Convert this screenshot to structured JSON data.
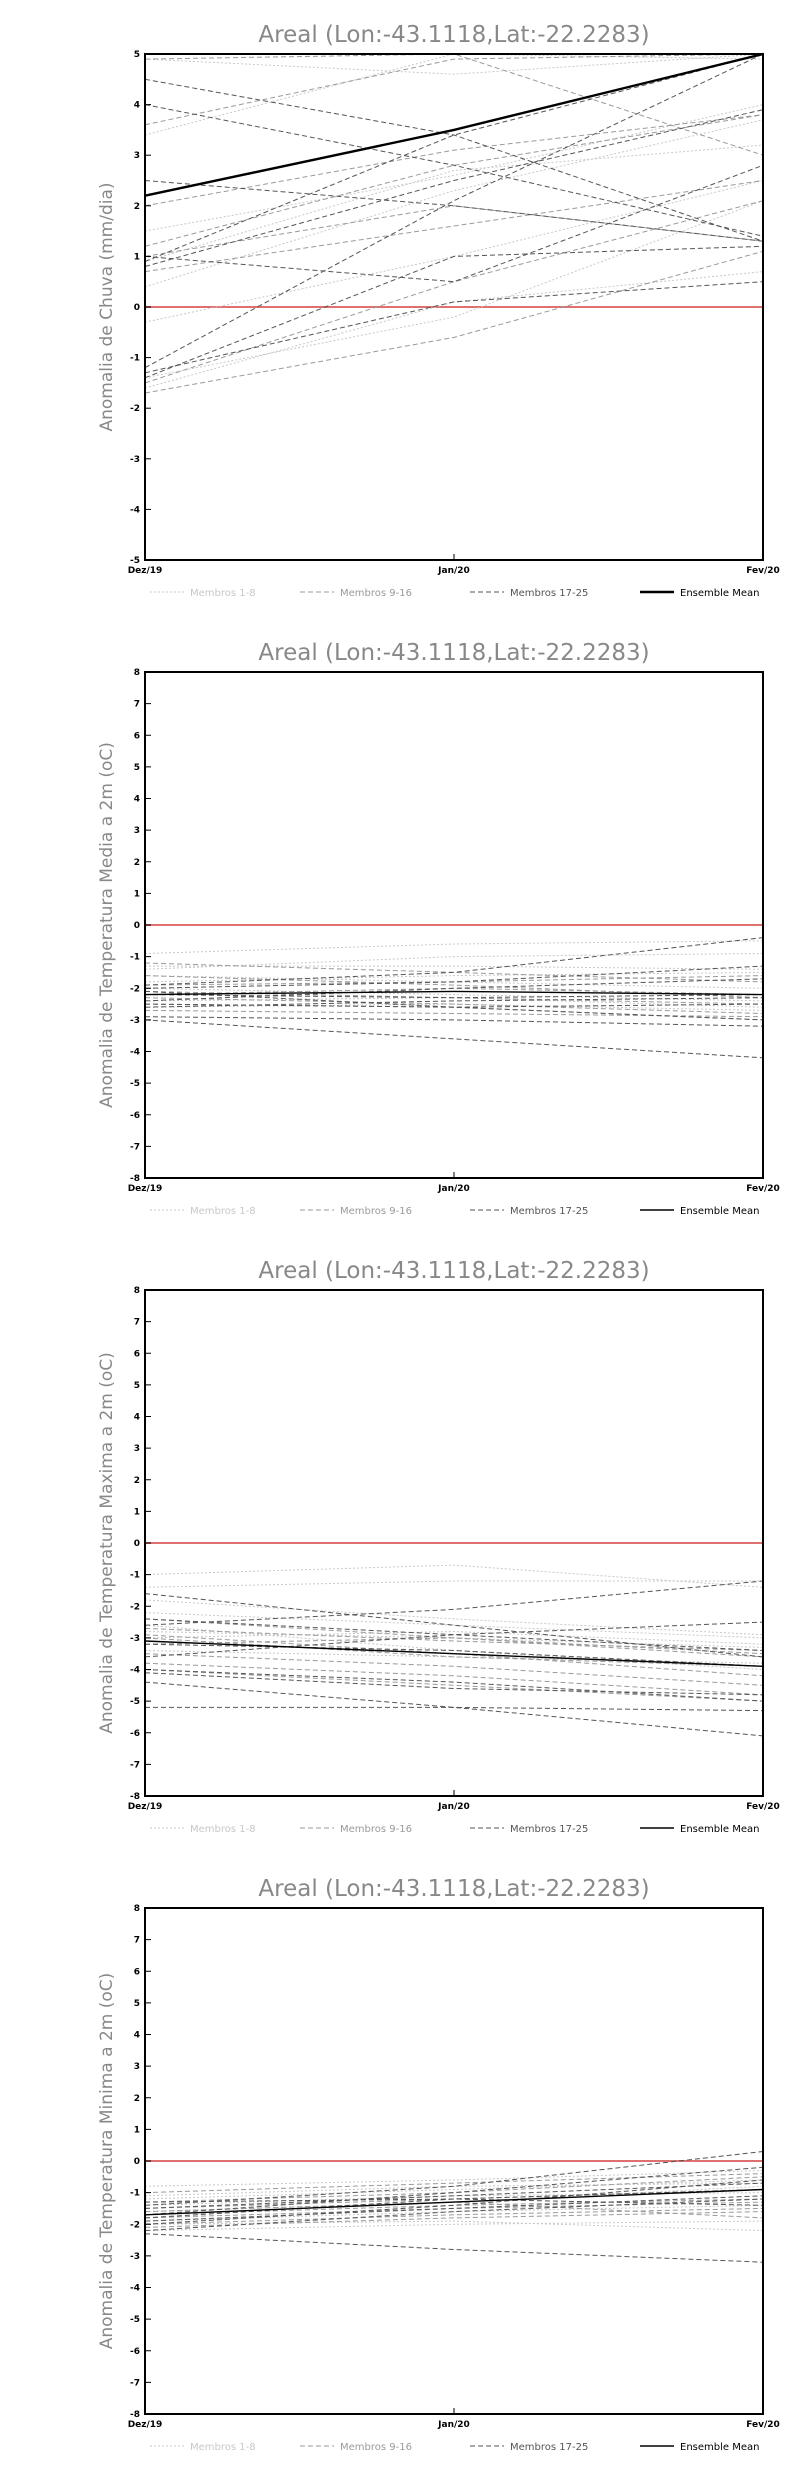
{
  "chart_data": [
    {
      "type": "line",
      "title": "Areal (Lon:-43.1118,Lat:-22.2283)",
      "xlabel": "",
      "ylabel": "Anomalia de Chuva (mm/dia)",
      "categories": [
        "Dez/19",
        "Jan/20",
        "Fev/20"
      ],
      "ylim": [
        -5,
        5
      ],
      "yticks": [
        -5,
        -4,
        -3,
        -2,
        -1,
        0,
        1,
        2,
        3,
        4,
        5
      ],
      "grid": false,
      "zero_line_color": "#e07070",
      "legend": [
        {
          "name": "Membros 1-8",
          "color": "#c8c8c8",
          "style": "dotted"
        },
        {
          "name": "Membros 9-16",
          "color": "#9a9a9a",
          "style": "dashed"
        },
        {
          "name": "Membros 17-25",
          "color": "#555555",
          "style": "dashed"
        },
        {
          "name": "Ensemble Mean",
          "color": "#000000",
          "style": "solid"
        }
      ],
      "mean_width": 2.4,
      "series": [
        {
          "group": 0,
          "values": [
            3.4,
            5.0,
            4.9
          ]
        },
        {
          "group": 0,
          "values": [
            1.5,
            2.6,
            4.0
          ]
        },
        {
          "group": 0,
          "values": [
            0.4,
            2.3,
            3.7
          ]
        },
        {
          "group": 0,
          "values": [
            -0.3,
            1.0,
            2.5
          ]
        },
        {
          "group": 0,
          "values": [
            -1.6,
            0.1,
            0.7
          ]
        },
        {
          "group": 0,
          "values": [
            -1.4,
            -0.2,
            2.1
          ]
        },
        {
          "group": 0,
          "values": [
            4.9,
            4.6,
            5.0
          ]
        },
        {
          "group": 0,
          "values": [
            0.9,
            2.7,
            3.2
          ]
        },
        {
          "group": 1,
          "values": [
            4.9,
            5.0,
            3.0
          ]
        },
        {
          "group": 1,
          "values": [
            2.0,
            3.1,
            3.8
          ]
        },
        {
          "group": 1,
          "values": [
            0.7,
            1.6,
            2.5
          ]
        },
        {
          "group": 1,
          "values": [
            -1.5,
            0.5,
            2.1
          ]
        },
        {
          "group": 1,
          "values": [
            -1.7,
            -0.6,
            1.1
          ]
        },
        {
          "group": 1,
          "values": [
            1.2,
            2.8,
            3.8
          ]
        },
        {
          "group": 1,
          "values": [
            3.6,
            4.9,
            5.0
          ]
        },
        {
          "group": 1,
          "values": [
            1.0,
            2.0,
            1.3
          ]
        },
        {
          "group": 2,
          "values": [
            4.5,
            3.4,
            1.3
          ]
        },
        {
          "group": 2,
          "values": [
            4.0,
            2.8,
            1.4
          ]
        },
        {
          "group": 2,
          "values": [
            0.9,
            3.4,
            5.0
          ]
        },
        {
          "group": 2,
          "values": [
            -1.2,
            2.1,
            5.0
          ]
        },
        {
          "group": 2,
          "values": [
            -1.4,
            1.0,
            1.2
          ]
        },
        {
          "group": 2,
          "values": [
            -1.3,
            0.1,
            0.5
          ]
        },
        {
          "group": 2,
          "values": [
            0.8,
            2.5,
            3.9
          ]
        },
        {
          "group": 2,
          "values": [
            1.0,
            0.5,
            2.8
          ]
        },
        {
          "group": 2,
          "values": [
            2.5,
            2.0,
            1.3
          ]
        }
      ],
      "ensemble_mean": [
        2.2,
        3.5,
        5.0
      ]
    },
    {
      "type": "line",
      "title": "Areal (Lon:-43.1118,Lat:-22.2283)",
      "xlabel": "",
      "ylabel": "Anomalia de Temperatura Media a 2m (oC)",
      "categories": [
        "Dez/19",
        "Jan/20",
        "Fev/20"
      ],
      "ylim": [
        -8,
        8
      ],
      "yticks": [
        -8,
        -7,
        -6,
        -5,
        -4,
        -3,
        -2,
        -1,
        0,
        1,
        2,
        3,
        4,
        5,
        6,
        7,
        8
      ],
      "grid": false,
      "zero_line_color": "#e07070",
      "legend": [
        {
          "name": "Membros 1-8",
          "color": "#c8c8c8",
          "style": "dotted"
        },
        {
          "name": "Membros 9-16",
          "color": "#9a9a9a",
          "style": "dashed"
        },
        {
          "name": "Membros 17-25",
          "color": "#555555",
          "style": "dashed"
        },
        {
          "name": "Ensemble Mean",
          "color": "#000000",
          "style": "solid"
        }
      ],
      "mean_width": 1.4,
      "series": [
        {
          "group": 0,
          "values": [
            -0.9,
            -0.6,
            -0.5
          ]
        },
        {
          "group": 0,
          "values": [
            -1.3,
            -1.3,
            -1.4
          ]
        },
        {
          "group": 0,
          "values": [
            -1.6,
            -1.8,
            -2.0
          ]
        },
        {
          "group": 0,
          "values": [
            -2.4,
            -2.3,
            -2.6
          ]
        },
        {
          "group": 0,
          "values": [
            -1.4,
            -1.0,
            -0.9
          ]
        },
        {
          "group": 0,
          "values": [
            -2.0,
            -2.2,
            -2.4
          ]
        },
        {
          "group": 0,
          "values": [
            -1.8,
            -1.6,
            -1.5
          ]
        },
        {
          "group": 0,
          "values": [
            -2.6,
            -2.5,
            -2.7
          ]
        },
        {
          "group": 1,
          "values": [
            -1.2,
            -1.5,
            -1.8
          ]
        },
        {
          "group": 1,
          "values": [
            -1.6,
            -1.9,
            -2.3
          ]
        },
        {
          "group": 1,
          "values": [
            -2.1,
            -2.3,
            -2.5
          ]
        },
        {
          "group": 1,
          "values": [
            -2.3,
            -2.5,
            -2.8
          ]
        },
        {
          "group": 1,
          "values": [
            -1.9,
            -1.8,
            -1.6
          ]
        },
        {
          "group": 1,
          "values": [
            -2.5,
            -2.6,
            -3.0
          ]
        },
        {
          "group": 1,
          "values": [
            -2.7,
            -2.8,
            -2.9
          ]
        },
        {
          "group": 1,
          "values": [
            -2.2,
            -2.0,
            -2.2
          ]
        },
        {
          "group": 2,
          "values": [
            -2.0,
            -1.8,
            -1.3
          ]
        },
        {
          "group": 2,
          "values": [
            -2.4,
            -2.0,
            -1.7
          ]
        },
        {
          "group": 2,
          "values": [
            -2.2,
            -2.3,
            -2.2
          ]
        },
        {
          "group": 2,
          "values": [
            -2.6,
            -2.4,
            -2.3
          ]
        },
        {
          "group": 2,
          "values": [
            -2.9,
            -3.0,
            -3.2
          ]
        },
        {
          "group": 2,
          "values": [
            -2.1,
            -2.6,
            -3.0
          ]
        },
        {
          "group": 2,
          "values": [
            -3.0,
            -3.6,
            -4.2
          ]
        },
        {
          "group": 2,
          "values": [
            -1.9,
            -1.5,
            -0.4
          ]
        },
        {
          "group": 2,
          "values": [
            -2.5,
            -2.6,
            -2.5
          ]
        }
      ],
      "ensemble_mean": [
        -2.2,
        -2.1,
        -2.2
      ]
    },
    {
      "type": "line",
      "title": "Areal (Lon:-43.1118,Lat:-22.2283)",
      "xlabel": "",
      "ylabel": "Anomalia de Temperatura Maxima a 2m (oC)",
      "categories": [
        "Dez/19",
        "Jan/20",
        "Fev/20"
      ],
      "ylim": [
        -8,
        8
      ],
      "yticks": [
        -8,
        -7,
        -6,
        -5,
        -4,
        -3,
        -2,
        -1,
        0,
        1,
        2,
        3,
        4,
        5,
        6,
        7,
        8
      ],
      "grid": false,
      "zero_line_color": "#e07070",
      "legend": [
        {
          "name": "Membros 1-8",
          "color": "#c8c8c8",
          "style": "dotted"
        },
        {
          "name": "Membros 9-16",
          "color": "#9a9a9a",
          "style": "dashed"
        },
        {
          "name": "Membros 17-25",
          "color": "#555555",
          "style": "dashed"
        },
        {
          "name": "Ensemble Mean",
          "color": "#000000",
          "style": "solid"
        }
      ],
      "mean_width": 1.4,
      "series": [
        {
          "group": 0,
          "values": [
            -1.0,
            -0.7,
            -1.4
          ]
        },
        {
          "group": 0,
          "values": [
            -1.4,
            -1.2,
            -1.2
          ]
        },
        {
          "group": 0,
          "values": [
            -2.2,
            -2.6,
            -3.0
          ]
        },
        {
          "group": 0,
          "values": [
            -2.8,
            -3.0,
            -3.3
          ]
        },
        {
          "group": 0,
          "values": [
            -1.8,
            -2.4,
            -2.9
          ]
        },
        {
          "group": 0,
          "values": [
            -3.4,
            -3.6,
            -3.8
          ]
        },
        {
          "group": 0,
          "values": [
            -2.6,
            -3.4,
            -4.0
          ]
        },
        {
          "group": 0,
          "values": [
            -3.0,
            -2.8,
            -3.2
          ]
        },
        {
          "group": 1,
          "values": [
            -2.4,
            -3.0,
            -3.5
          ]
        },
        {
          "group": 1,
          "values": [
            -2.9,
            -3.5,
            -4.2
          ]
        },
        {
          "group": 1,
          "values": [
            -3.2,
            -3.0,
            -3.6
          ]
        },
        {
          "group": 1,
          "values": [
            -3.5,
            -3.9,
            -4.5
          ]
        },
        {
          "group": 1,
          "values": [
            -2.7,
            -3.1,
            -3.4
          ]
        },
        {
          "group": 1,
          "values": [
            -3.8,
            -4.2,
            -4.8
          ]
        },
        {
          "group": 1,
          "values": [
            -4.0,
            -4.5,
            -5.0
          ]
        },
        {
          "group": 1,
          "values": [
            -3.0,
            -3.6,
            -3.9
          ]
        },
        {
          "group": 2,
          "values": [
            -1.6,
            -2.6,
            -3.6
          ]
        },
        {
          "group": 2,
          "values": [
            -2.6,
            -2.1,
            -1.2
          ]
        },
        {
          "group": 2,
          "values": [
            -3.6,
            -2.9,
            -2.5
          ]
        },
        {
          "group": 2,
          "values": [
            -4.1,
            -4.6,
            -4.8
          ]
        },
        {
          "group": 2,
          "values": [
            -5.2,
            -5.2,
            -5.3
          ]
        },
        {
          "group": 2,
          "values": [
            -4.4,
            -5.2,
            -6.1
          ]
        },
        {
          "group": 2,
          "values": [
            -2.4,
            -2.9,
            -3.4
          ]
        },
        {
          "group": 2,
          "values": [
            -3.2,
            -3.4,
            -3.9
          ]
        },
        {
          "group": 2,
          "values": [
            -4.0,
            -4.4,
            -5.0
          ]
        }
      ],
      "ensemble_mean": [
        -3.1,
        -3.5,
        -3.9
      ]
    },
    {
      "type": "line",
      "title": "Areal (Lon:-43.1118,Lat:-22.2283)",
      "xlabel": "",
      "ylabel": "Anomalia de Temperatura Minima a 2m (oC)",
      "categories": [
        "Dez/19",
        "Jan/20",
        "Fev/20"
      ],
      "ylim": [
        -8,
        8
      ],
      "yticks": [
        -8,
        -7,
        -6,
        -5,
        -4,
        -3,
        -2,
        -1,
        0,
        1,
        2,
        3,
        4,
        5,
        6,
        7,
        8
      ],
      "grid": false,
      "zero_line_color": "#e07070",
      "legend": [
        {
          "name": "Membros 1-8",
          "color": "#c8c8c8",
          "style": "dotted"
        },
        {
          "name": "Membros 9-16",
          "color": "#9a9a9a",
          "style": "dashed"
        },
        {
          "name": "Membros 17-25",
          "color": "#555555",
          "style": "dashed"
        },
        {
          "name": "Ensemble Mean",
          "color": "#000000",
          "style": "solid"
        }
      ],
      "mean_width": 1.4,
      "series": [
        {
          "group": 0,
          "values": [
            -0.8,
            -0.6,
            -0.3
          ]
        },
        {
          "group": 0,
          "values": [
            -1.2,
            -0.9,
            -0.6
          ]
        },
        {
          "group": 0,
          "values": [
            -1.6,
            -1.3,
            -0.8
          ]
        },
        {
          "group": 0,
          "values": [
            -2.0,
            -1.9,
            -2.2
          ]
        },
        {
          "group": 0,
          "values": [
            -1.4,
            -1.1,
            -1.0
          ]
        },
        {
          "group": 0,
          "values": [
            -1.9,
            -1.6,
            -1.4
          ]
        },
        {
          "group": 0,
          "values": [
            -2.2,
            -2.0,
            -1.9
          ]
        },
        {
          "group": 0,
          "values": [
            -1.1,
            -0.8,
            -0.7
          ]
        },
        {
          "group": 1,
          "values": [
            -1.5,
            -1.2,
            -0.9
          ]
        },
        {
          "group": 1,
          "values": [
            -1.8,
            -1.5,
            -1.3
          ]
        },
        {
          "group": 1,
          "values": [
            -2.1,
            -1.8,
            -1.6
          ]
        },
        {
          "group": 1,
          "values": [
            -1.3,
            -1.0,
            -0.5
          ]
        },
        {
          "group": 1,
          "values": [
            -1.7,
            -1.4,
            -1.2
          ]
        },
        {
          "group": 1,
          "values": [
            -2.0,
            -1.7,
            -1.5
          ]
        },
        {
          "group": 1,
          "values": [
            -1.6,
            -1.3,
            -1.8
          ]
        },
        {
          "group": 1,
          "values": [
            -1.0,
            -0.7,
            -0.4
          ]
        },
        {
          "group": 2,
          "values": [
            -1.4,
            -0.8,
            0.3
          ]
        },
        {
          "group": 2,
          "values": [
            -1.7,
            -1.0,
            -0.2
          ]
        },
        {
          "group": 2,
          "values": [
            -2.3,
            -2.8,
            -3.2
          ]
        },
        {
          "group": 2,
          "values": [
            -1.9,
            -1.5,
            -1.1
          ]
        },
        {
          "group": 2,
          "values": [
            -1.5,
            -1.1,
            -0.7
          ]
        },
        {
          "group": 2,
          "values": [
            -2.2,
            -1.6,
            -1.2
          ]
        },
        {
          "group": 2,
          "values": [
            -1.8,
            -1.2,
            -0.9
          ]
        },
        {
          "group": 2,
          "values": [
            -1.3,
            -1.2,
            -1.4
          ]
        },
        {
          "group": 2,
          "values": [
            -2.0,
            -1.4,
            -0.6
          ]
        }
      ],
      "ensemble_mean": [
        -1.7,
        -1.3,
        -0.9
      ]
    }
  ]
}
